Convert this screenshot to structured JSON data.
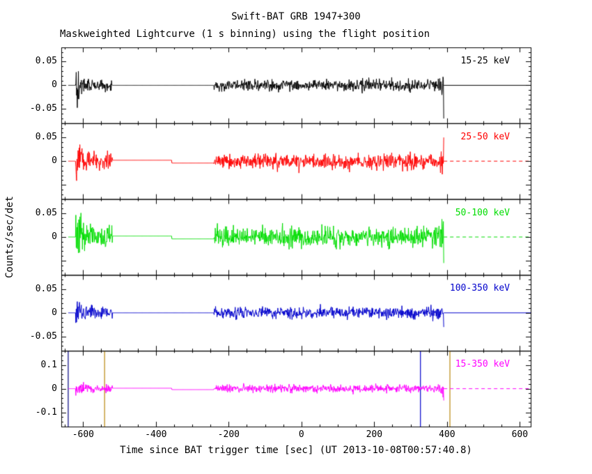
{
  "chart_data": {
    "type": "line",
    "title": "Swift-BAT GRB 1947+300",
    "subtitle": "Maskweighted Lightcurve (1 s binning) using the flight position",
    "xlabel": "Time since BAT trigger time [sec] (UT 2013-10-08T00:57:40.8)",
    "ylabel": "Counts/sec/det",
    "grid": false,
    "legend_position": "in-panel-top-right",
    "x": {
      "range": [
        -660,
        630
      ],
      "major_ticks": [
        -600,
        -400,
        -200,
        0,
        200,
        400,
        600
      ],
      "tick_labels": [
        "-600",
        "-400",
        "-200",
        "0",
        "200",
        "400",
        "600"
      ],
      "minor_step": 50
    },
    "segments": {
      "baseline_start": -641,
      "baseline_end": 630,
      "burst1": [
        -620,
        -519
      ],
      "quiet": [
        -519,
        -240
      ],
      "burst2": [
        -240,
        391
      ]
    },
    "panels": [
      {
        "label": "15-25 keV",
        "color": "#000000",
        "ylim": [
          -0.08,
          0.08
        ],
        "yticks": [
          -0.05,
          0,
          0.05
        ],
        "ytick_labels": [
          {
            "v": 0.05,
            "label": "0.05"
          },
          {
            "v": 0,
            "label": "0"
          },
          {
            "v": -0.05,
            "label": "-0.05"
          }
        ],
        "y_minor_step": 0.01,
        "sigma": 0.006,
        "end_spike": -0.07,
        "baseline_steps": [],
        "dashed_after": false,
        "seed": 101
      },
      {
        "label": "25-50 keV",
        "color": "#ff0000",
        "ylim": [
          -0.08,
          0.08
        ],
        "yticks": [
          -0.05,
          0,
          0.05
        ],
        "ytick_labels": [
          {
            "v": 0.05,
            "label": "0.05"
          },
          {
            "v": 0,
            "label": "0"
          }
        ],
        "y_minor_step": 0.01,
        "sigma": 0.008,
        "end_spike": 0.05,
        "baseline_steps": [
          {
            "from": -519,
            "to": -356,
            "offset": 0.002
          },
          {
            "from": -356,
            "to": -240,
            "offset": -0.004
          }
        ],
        "dashed_after": true,
        "seed": 202
      },
      {
        "label": "50-100 keV",
        "color": "#00dd00",
        "ylim": [
          -0.08,
          0.08
        ],
        "yticks": [
          -0.05,
          0,
          0.05
        ],
        "ytick_labels": [
          {
            "v": 0.05,
            "label": "0.05"
          },
          {
            "v": 0,
            "label": "0"
          }
        ],
        "y_minor_step": 0.01,
        "sigma": 0.01,
        "end_spike": -0.055,
        "baseline_steps": [
          {
            "from": -519,
            "to": -356,
            "offset": 0.002
          },
          {
            "from": -356,
            "to": -240,
            "offset": -0.004
          }
        ],
        "dashed_after": true,
        "seed": 303
      },
      {
        "label": "100-350 keV",
        "color": "#0000cc",
        "ylim": [
          -0.08,
          0.08
        ],
        "yticks": [
          -0.05,
          0,
          0.05
        ],
        "ytick_labels": [
          {
            "v": 0.05,
            "label": "0.05"
          },
          {
            "v": 0,
            "label": "0"
          },
          {
            "v": -0.05,
            "label": "-0.05"
          }
        ],
        "y_minor_step": 0.01,
        "sigma": 0.006,
        "end_spike": -0.03,
        "baseline_steps": [],
        "dashed_after": false,
        "seed": 404
      },
      {
        "label": "15-350 keV",
        "color": "#ff00ff",
        "ylim": [
          -0.16,
          0.16
        ],
        "yticks": [
          -0.1,
          0,
          0.1
        ],
        "ytick_labels": [
          {
            "v": 0.1,
            "label": "0.1"
          },
          {
            "v": 0,
            "label": "0"
          },
          {
            "v": -0.1,
            "label": "-0.1"
          }
        ],
        "y_minor_step": 0.02,
        "sigma": 0.008,
        "end_spike": -0.05,
        "baseline_steps": [
          {
            "from": -519,
            "to": -356,
            "offset": 0.002
          },
          {
            "from": -356,
            "to": -240,
            "offset": -0.004
          }
        ],
        "dashed_after": true,
        "seed": 505,
        "markers": [
          {
            "t": -641,
            "color": "#000080"
          },
          {
            "t": -541,
            "color": "#b8860b"
          },
          {
            "t": 327,
            "color": "#0000cc"
          },
          {
            "t": 408,
            "color": "#b8860b"
          }
        ]
      }
    ]
  }
}
